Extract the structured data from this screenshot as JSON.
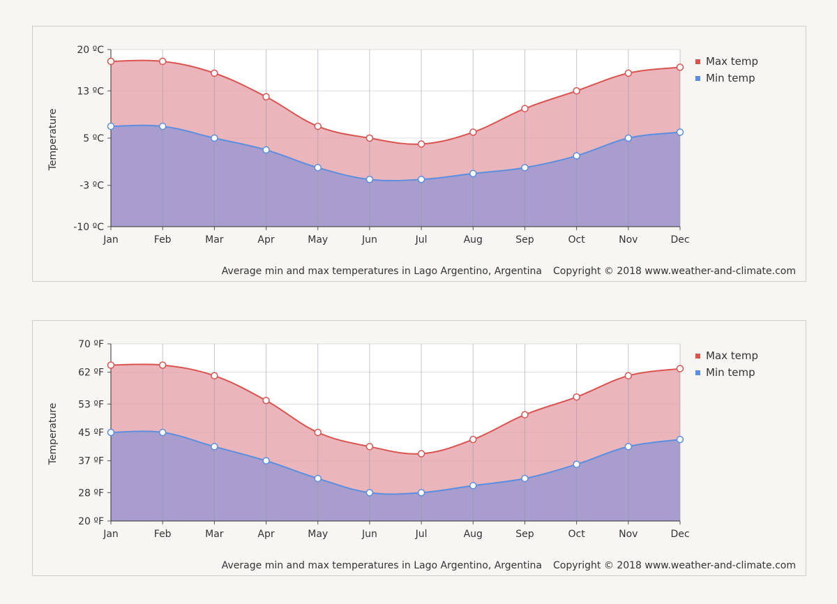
{
  "chart_data": [
    {
      "type": "area",
      "categories": [
        "Jan",
        "Feb",
        "Mar",
        "Apr",
        "May",
        "Jun",
        "Jul",
        "Aug",
        "Sep",
        "Oct",
        "Nov",
        "Dec"
      ],
      "series": [
        {
          "name": "Max temp",
          "color": "#d9534f",
          "fill": "#e8a8b0",
          "values": [
            18,
            18,
            16,
            12,
            7,
            5,
            4,
            6,
            10,
            13,
            16,
            17
          ]
        },
        {
          "name": "Min temp",
          "color": "#5b8ee0",
          "fill": "#a89dcc",
          "values": [
            7,
            7,
            5,
            3,
            0,
            -2,
            -2,
            -1,
            0,
            2,
            5,
            6
          ]
        }
      ],
      "ylabel": "Temperature",
      "ylim": [
        -10,
        20
      ],
      "yticks": [
        20,
        13,
        5,
        -3,
        -10
      ],
      "ytick_labels": [
        "20 ºC",
        "13 ºC",
        "5 ºC",
        "-3 ºC",
        "-10 ºC"
      ],
      "caption": "Average min and max temperatures in Lago Argentino, Argentina",
      "copyright": "Copyright © 2018 www.weather-and-climate.com",
      "grid": true,
      "legend": "top-right"
    },
    {
      "type": "area",
      "categories": [
        "Jan",
        "Feb",
        "Mar",
        "Apr",
        "May",
        "Jun",
        "Jul",
        "Aug",
        "Sep",
        "Oct",
        "Nov",
        "Dec"
      ],
      "series": [
        {
          "name": "Max temp",
          "color": "#d9534f",
          "fill": "#e8a8b0",
          "values": [
            64,
            64,
            61,
            54,
            45,
            41,
            39,
            43,
            50,
            55,
            61,
            63
          ]
        },
        {
          "name": "Min temp",
          "color": "#5b8ee0",
          "fill": "#a89dcc",
          "values": [
            45,
            45,
            41,
            37,
            32,
            28,
            28,
            30,
            32,
            36,
            41,
            43
          ]
        }
      ],
      "ylabel": "Temperature",
      "ylim": [
        20,
        70
      ],
      "yticks": [
        70,
        62,
        53,
        45,
        37,
        28,
        20
      ],
      "ytick_labels": [
        "70 ºF",
        "62 ºF",
        "53 ºF",
        "45 ºF",
        "37 ºF",
        "28 ºF",
        "20 ºF"
      ],
      "caption": "Average min and max temperatures in Lago Argentino, Argentina",
      "copyright": "Copyright © 2018 www.weather-and-climate.com",
      "grid": true,
      "legend": "top-right"
    }
  ]
}
